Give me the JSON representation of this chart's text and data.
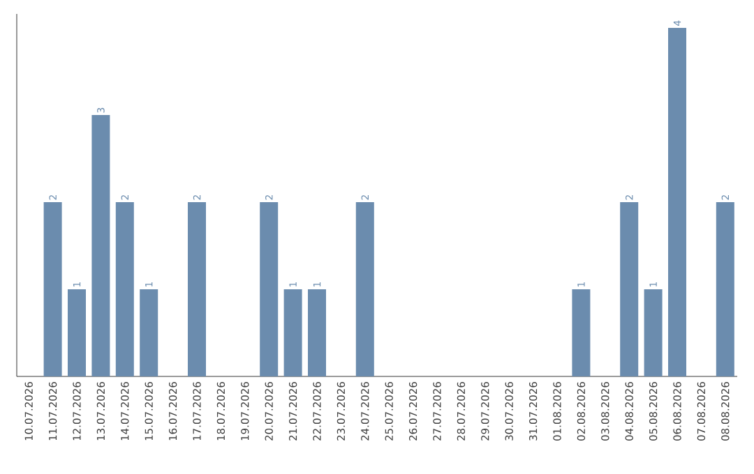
{
  "chart_data": {
    "type": "bar",
    "categories": [
      "10.07.2026",
      "11.07.2026",
      "12.07.2026",
      "13.07.2026",
      "14.07.2026",
      "15.07.2026",
      "16.07.2026",
      "17.07.2026",
      "18.07.2026",
      "19.07.2026",
      "20.07.2026",
      "21.07.2026",
      "22.07.2026",
      "23.07.2026",
      "24.07.2026",
      "25.07.2026",
      "26.07.2026",
      "27.07.2026",
      "28.07.2026",
      "29.07.2026",
      "30.07.2026",
      "31.07.2026",
      "01.08.2026",
      "02.08.2026",
      "03.08.2026",
      "04.08.2026",
      "05.08.2026",
      "06.08.2026",
      "07.08.2026",
      "08.08.2026"
    ],
    "values": [
      0,
      2,
      1,
      3,
      2,
      1,
      0,
      2,
      0,
      0,
      2,
      1,
      1,
      0,
      2,
      0,
      0,
      0,
      0,
      0,
      0,
      0,
      0,
      1,
      0,
      2,
      1,
      4,
      0,
      2
    ],
    "value_labels": [
      null,
      "2",
      "1",
      "3",
      "2",
      "1",
      null,
      "2",
      null,
      null,
      "2",
      "1",
      "1",
      null,
      "2",
      null,
      null,
      null,
      null,
      null,
      null,
      null,
      null,
      "1",
      null,
      "2",
      "1",
      "4",
      null,
      "2"
    ],
    "color": "#6b8cae"
  }
}
